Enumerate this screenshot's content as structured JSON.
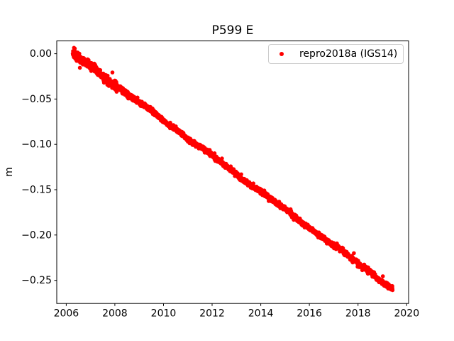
{
  "chart_data": {
    "type": "scatter",
    "title": "P599 E",
    "xlabel": "",
    "ylabel": "m",
    "grid": false,
    "background": "#ffffff",
    "axis_color": "#000000",
    "xlim": [
      2005.61,
      2020.08
    ],
    "ylim": [
      -0.2755,
      0.0141
    ],
    "xticks": {
      "values": [
        2006,
        2008,
        2010,
        2012,
        2014,
        2016,
        2018,
        2020
      ],
      "labels": [
        "2006",
        "2008",
        "2010",
        "2012",
        "2014",
        "2016",
        "2018",
        "2020"
      ]
    },
    "yticks": {
      "values": [
        0.0,
        -0.05,
        -0.1,
        -0.15,
        -0.2,
        -0.25
      ],
      "labels": [
        "0.00",
        "−0.05",
        "−0.10",
        "−0.15",
        "−0.20",
        "−0.25"
      ]
    },
    "legend": {
      "position": "upper right",
      "border_color": "#cccccc",
      "entries": [
        {
          "label": "repro2018a (IGS14)",
          "color": "#ff0000",
          "marker": "point"
        }
      ]
    },
    "series": [
      {
        "name": "repro2018a (IGS14)",
        "color": "#ff0000",
        "marker": "point",
        "marker_radius_px": 2.8,
        "x_start": 2006.27,
        "x_end": 2019.42,
        "y_start": 0.0,
        "y_end": -0.259,
        "slope_m_per_yr": -0.0197,
        "n_points": 2400,
        "noise_std_m": 0.0013,
        "noise_std_early_m": 0.0024,
        "early_until": 2008.1,
        "meander_amp_m": 0.0008,
        "anchor_points": [
          [
            2006.3,
            0.0
          ],
          [
            2007,
            -0.014
          ],
          [
            2008,
            -0.034
          ],
          [
            2009,
            -0.053
          ],
          [
            2010,
            -0.073
          ],
          [
            2011,
            -0.093
          ],
          [
            2012,
            -0.112
          ],
          [
            2013,
            -0.132
          ],
          [
            2014,
            -0.152
          ],
          [
            2015,
            -0.171
          ],
          [
            2016,
            -0.191
          ],
          [
            2017,
            -0.211
          ],
          [
            2018,
            -0.231
          ],
          [
            2019,
            -0.25
          ],
          [
            2019.42,
            -0.259
          ]
        ],
        "outliers": [
          [
            2006.56,
            -0.0155
          ],
          [
            2007.9,
            -0.0207
          ],
          [
            2017.83,
            -0.22
          ],
          [
            2019.02,
            -0.2455
          ]
        ]
      }
    ]
  }
}
